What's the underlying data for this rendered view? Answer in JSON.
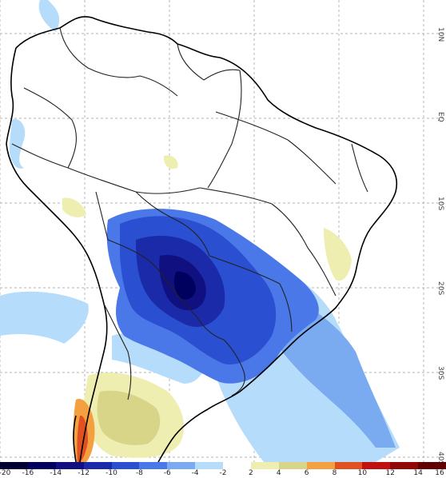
{
  "map": {
    "lat_labels": [
      "10N",
      "EQ",
      "10S",
      "20S",
      "30S",
      "40S"
    ],
    "palette": [
      "#000033",
      "#00005e",
      "#101080",
      "#1a2aa8",
      "#2a4fd0",
      "#4a78e8",
      "#7aaaf0",
      "#b5dcfa",
      "#ffffff",
      "#eeeeb0",
      "#d8d488",
      "#f4a040",
      "#e05020",
      "#c01010",
      "#900808",
      "#600000"
    ],
    "colorbar_labels": [
      "-20",
      "-16",
      "-14",
      "-12",
      "-10",
      "-8",
      "-6",
      "-4",
      "-2",
      "2",
      "4",
      "6",
      "8",
      "10",
      "12",
      "14",
      "16"
    ],
    "colors": {
      "coast": "#000000",
      "border": "#333333",
      "grid": "#999999"
    }
  }
}
